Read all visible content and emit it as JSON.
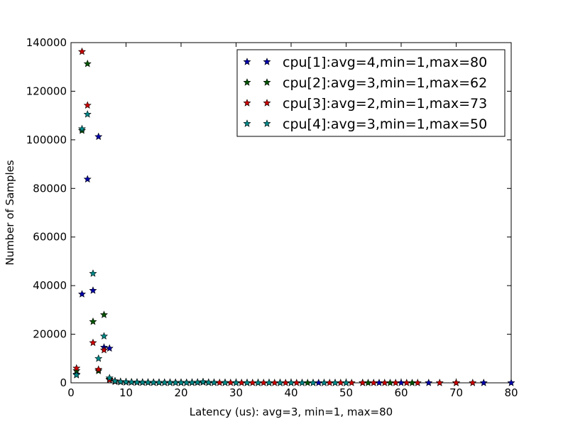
{
  "chart_data": {
    "type": "scatter",
    "marker": "star",
    "title": "",
    "xlabel": "Latency (us): avg=3, min=1, max=80",
    "ylabel": "Number of Samples",
    "xlim": [
      0,
      80
    ],
    "ylim": [
      0,
      140000
    ],
    "xticks": [
      0,
      10,
      20,
      30,
      40,
      50,
      60,
      70,
      80
    ],
    "yticks": [
      0,
      20000,
      40000,
      60000,
      80000,
      100000,
      120000,
      140000
    ],
    "grid": false,
    "legend": {
      "position": "top-right"
    },
    "series": [
      {
        "name": "cpu[1]:avg=4,min=1,max=80",
        "color": "#0000aa",
        "points": [
          [
            1,
            3500
          ],
          [
            2,
            36500
          ],
          [
            3,
            83800
          ],
          [
            4,
            38000
          ],
          [
            5,
            101300
          ],
          [
            6,
            14600
          ],
          [
            7,
            14200
          ],
          [
            8,
            800
          ],
          [
            9,
            500
          ],
          [
            10,
            400
          ],
          [
            11,
            300
          ],
          [
            12,
            250
          ],
          [
            13,
            200
          ],
          [
            14,
            200
          ],
          [
            15,
            180
          ],
          [
            16,
            150
          ],
          [
            17,
            150
          ],
          [
            18,
            120
          ],
          [
            19,
            120
          ],
          [
            20,
            100
          ],
          [
            21,
            100
          ],
          [
            22,
            150
          ],
          [
            23,
            200
          ],
          [
            24,
            400
          ],
          [
            25,
            150
          ],
          [
            26,
            100
          ],
          [
            28,
            80
          ],
          [
            30,
            60
          ],
          [
            32,
            50
          ],
          [
            34,
            40
          ],
          [
            36,
            30
          ],
          [
            38,
            30
          ],
          [
            40,
            20
          ],
          [
            42,
            20
          ],
          [
            45,
            15
          ],
          [
            48,
            10
          ],
          [
            50,
            10
          ],
          [
            53,
            8
          ],
          [
            56,
            6
          ],
          [
            60,
            5
          ],
          [
            65,
            4
          ],
          [
            70,
            3
          ],
          [
            75,
            2
          ],
          [
            80,
            1
          ]
        ]
      },
      {
        "name": "cpu[2]:avg=3,min=1,max=62",
        "color": "#005500",
        "points": [
          [
            1,
            5000
          ],
          [
            2,
            103800
          ],
          [
            3,
            131300
          ],
          [
            4,
            25200
          ],
          [
            5,
            4900
          ],
          [
            6,
            28000
          ],
          [
            7,
            1500
          ],
          [
            8,
            600
          ],
          [
            9,
            400
          ],
          [
            10,
            300
          ],
          [
            11,
            250
          ],
          [
            12,
            200
          ],
          [
            13,
            180
          ],
          [
            14,
            150
          ],
          [
            15,
            120
          ],
          [
            16,
            100
          ],
          [
            17,
            100
          ],
          [
            18,
            90
          ],
          [
            19,
            80
          ],
          [
            20,
            70
          ],
          [
            21,
            60
          ],
          [
            22,
            100
          ],
          [
            23,
            150
          ],
          [
            24,
            300
          ],
          [
            25,
            120
          ],
          [
            26,
            80
          ],
          [
            28,
            60
          ],
          [
            30,
            40
          ],
          [
            32,
            30
          ],
          [
            34,
            25
          ],
          [
            36,
            20
          ],
          [
            38,
            15
          ],
          [
            40,
            12
          ],
          [
            43,
            10
          ],
          [
            46,
            8
          ],
          [
            50,
            6
          ],
          [
            54,
            4
          ],
          [
            58,
            3
          ],
          [
            62,
            1
          ]
        ]
      },
      {
        "name": "cpu[3]:avg=2,min=1,max=73",
        "color": "#cc0000",
        "points": [
          [
            1,
            6000
          ],
          [
            2,
            136300
          ],
          [
            3,
            114200
          ],
          [
            4,
            16500
          ],
          [
            5,
            5500
          ],
          [
            6,
            13500
          ],
          [
            7,
            1200
          ],
          [
            8,
            500
          ],
          [
            9,
            350
          ],
          [
            10,
            250
          ],
          [
            11,
            200
          ],
          [
            12,
            180
          ],
          [
            13,
            150
          ],
          [
            14,
            130
          ],
          [
            15,
            110
          ],
          [
            16,
            100
          ],
          [
            17,
            90
          ],
          [
            18,
            80
          ],
          [
            19,
            70
          ],
          [
            20,
            60
          ],
          [
            21,
            50
          ],
          [
            22,
            80
          ],
          [
            23,
            120
          ],
          [
            24,
            250
          ],
          [
            25,
            100
          ],
          [
            27,
            70
          ],
          [
            29,
            50
          ],
          [
            31,
            40
          ],
          [
            33,
            30
          ],
          [
            35,
            25
          ],
          [
            37,
            20
          ],
          [
            39,
            15
          ],
          [
            41,
            12
          ],
          [
            44,
            10
          ],
          [
            47,
            8
          ],
          [
            49,
            6
          ],
          [
            51,
            5
          ],
          [
            53,
            5
          ],
          [
            55,
            4
          ],
          [
            57,
            4
          ],
          [
            59,
            3
          ],
          [
            61,
            3
          ],
          [
            63,
            2
          ],
          [
            67,
            2
          ],
          [
            70,
            1
          ],
          [
            73,
            1
          ]
        ]
      },
      {
        "name": "cpu[4]:avg=3,min=1,max=50",
        "color": "#008888",
        "points": [
          [
            1,
            3200
          ],
          [
            2,
            104500
          ],
          [
            3,
            110500
          ],
          [
            4,
            45000
          ],
          [
            5,
            10000
          ],
          [
            6,
            19200
          ],
          [
            7,
            2000
          ],
          [
            8,
            700
          ],
          [
            9,
            450
          ],
          [
            10,
            350
          ],
          [
            11,
            280
          ],
          [
            12,
            220
          ],
          [
            13,
            180
          ],
          [
            14,
            160
          ],
          [
            15,
            140
          ],
          [
            16,
            120
          ],
          [
            17,
            100
          ],
          [
            18,
            90
          ],
          [
            19,
            80
          ],
          [
            20,
            70
          ],
          [
            21,
            60
          ],
          [
            22,
            120
          ],
          [
            23,
            200
          ],
          [
            24,
            350
          ],
          [
            25,
            130
          ],
          [
            26,
            90
          ],
          [
            28,
            60
          ],
          [
            30,
            40
          ],
          [
            32,
            30
          ],
          [
            34,
            25
          ],
          [
            36,
            20
          ],
          [
            38,
            15
          ],
          [
            40,
            12
          ],
          [
            42,
            10
          ],
          [
            44,
            8
          ],
          [
            46,
            6
          ],
          [
            48,
            4
          ],
          [
            50,
            2
          ]
        ]
      }
    ]
  }
}
